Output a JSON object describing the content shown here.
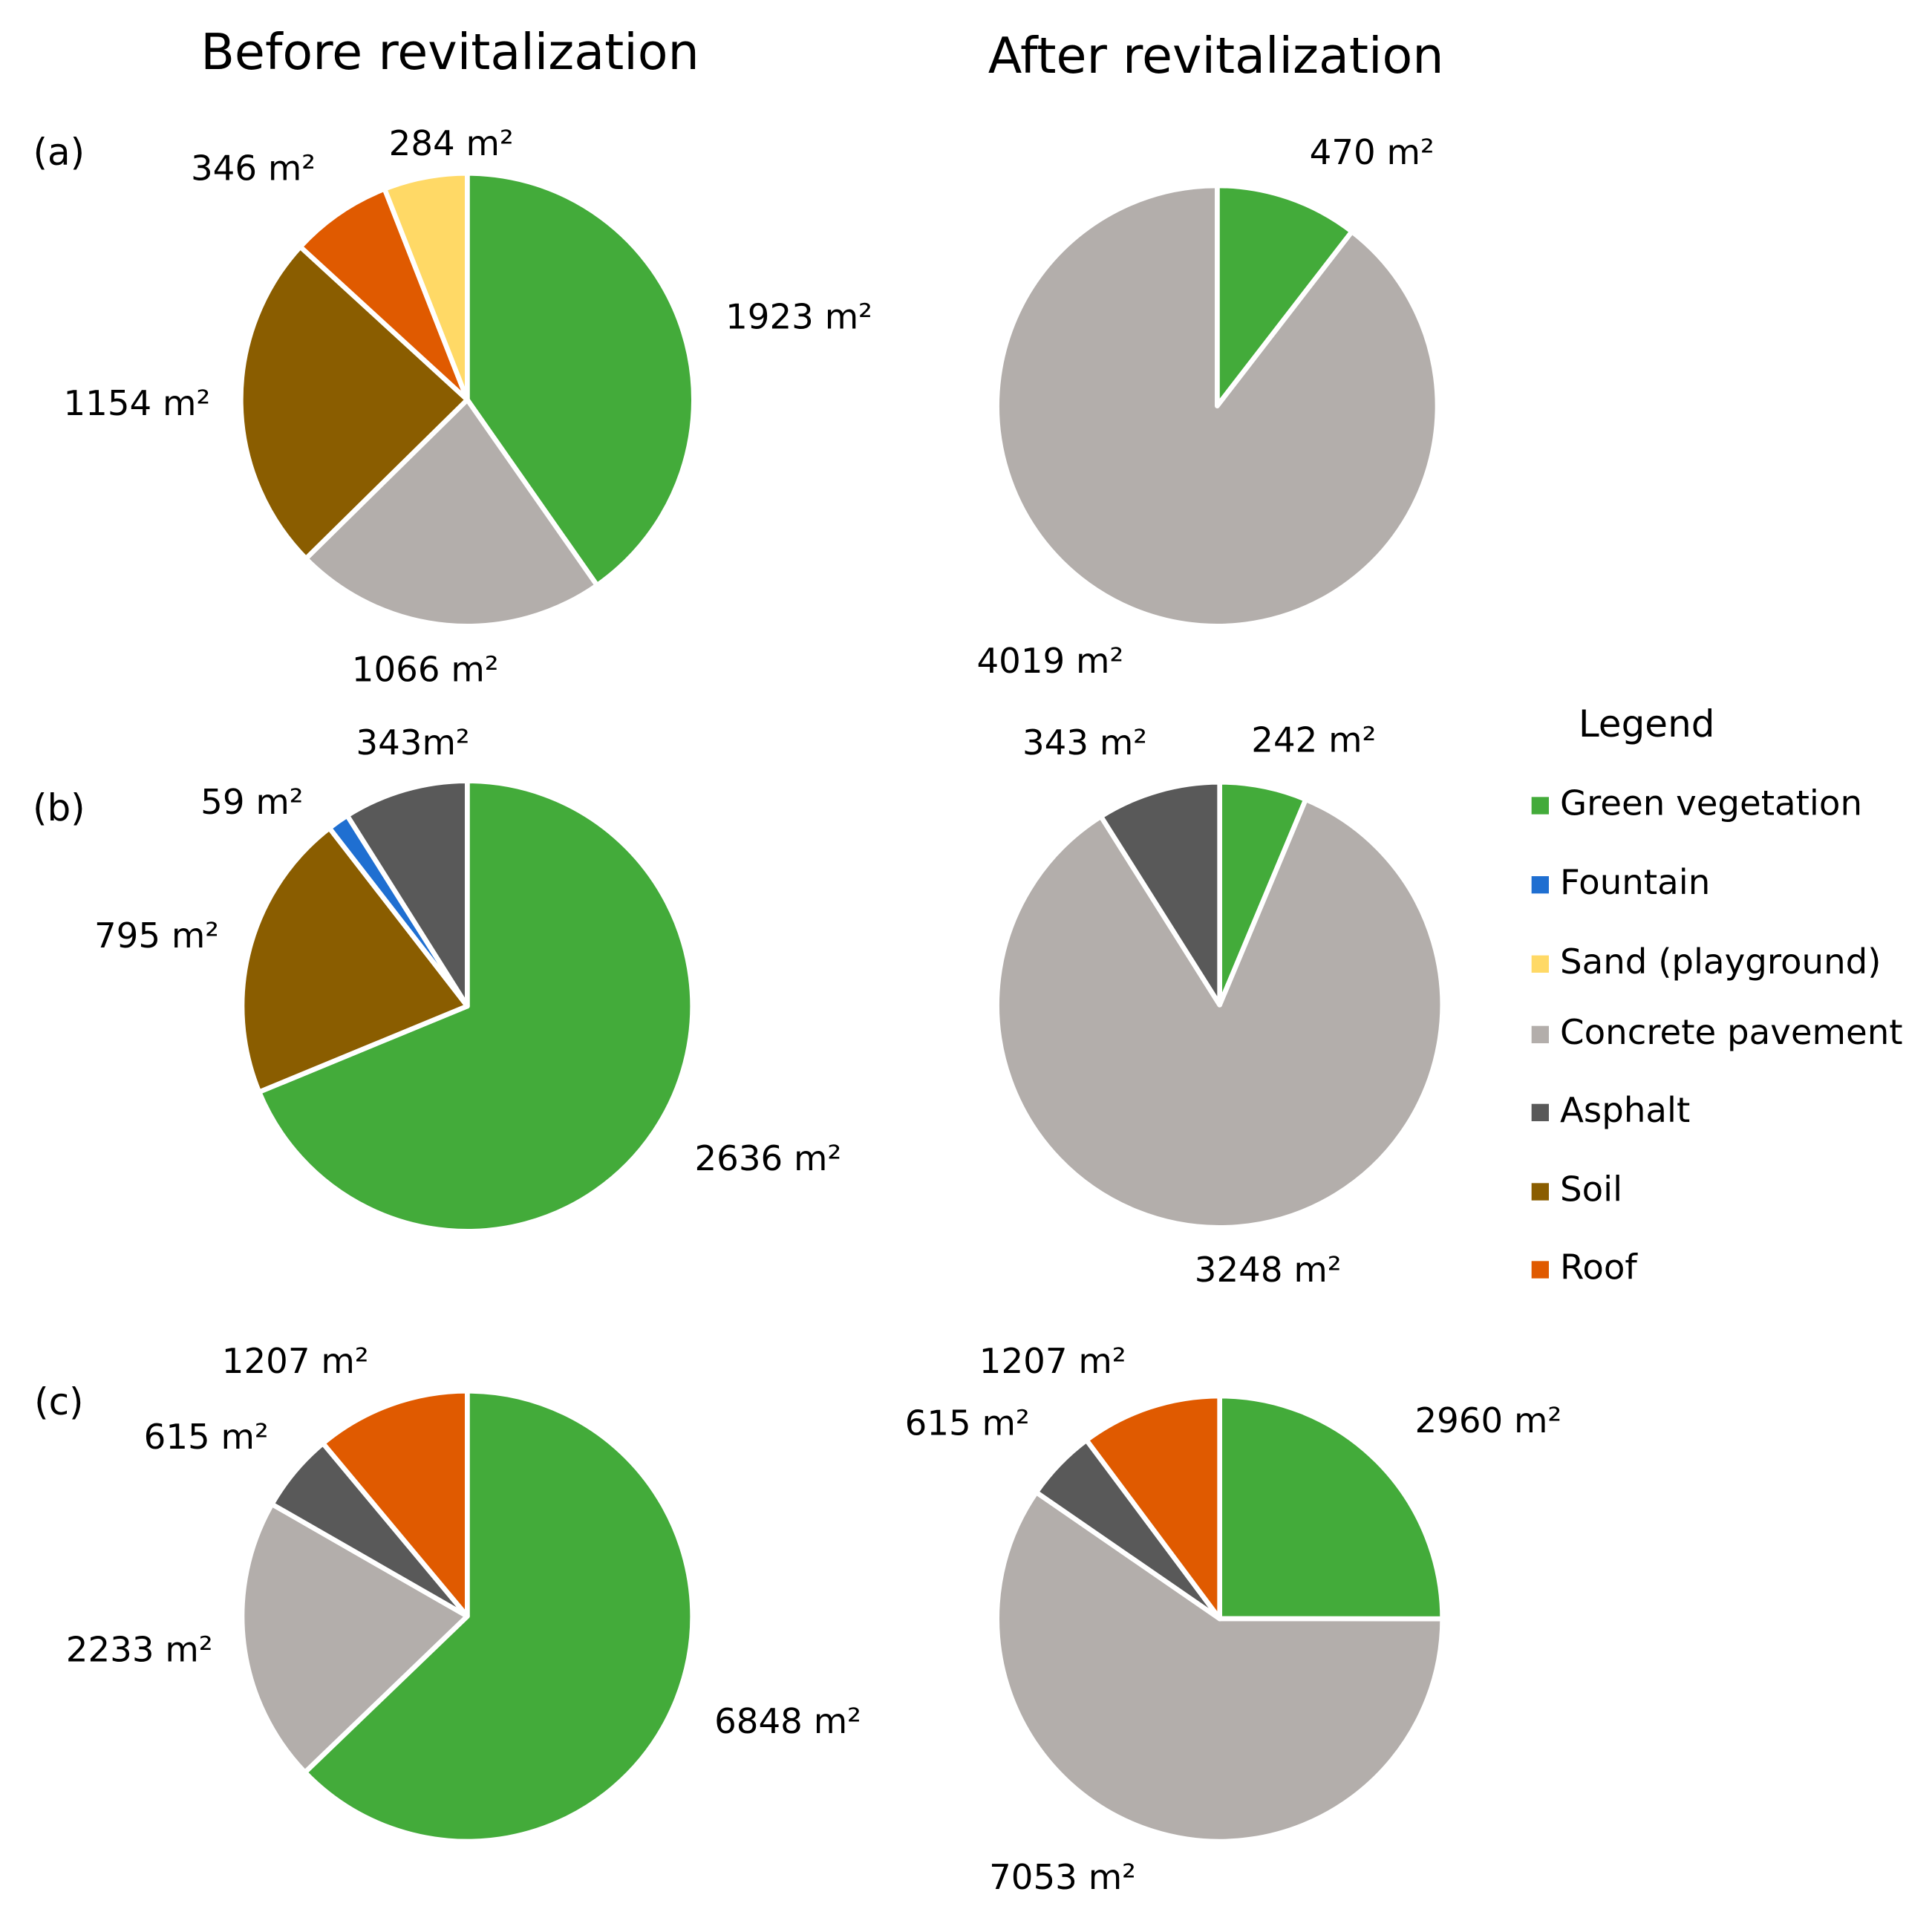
{
  "column_titles": [
    "Before revitalization",
    "After revitalization"
  ],
  "row_labels": [
    "(a)",
    "(b)",
    "(c)"
  ],
  "legend": {
    "title": "Legend",
    "items": [
      {
        "name": "Green vegetation",
        "color": "#43ab3a"
      },
      {
        "name": "Fountain",
        "color": "#1f6fd1"
      },
      {
        "name": "Sand (playground)",
        "color": "#ffd966"
      },
      {
        "name": "Concrete pavement",
        "color": "#b3aeab"
      },
      {
        "name": "Asphalt",
        "color": "#595959"
      },
      {
        "name": "Soil",
        "color": "#8a5d00"
      },
      {
        "name": "Roof",
        "color": "#e05a00"
      }
    ]
  },
  "chart_data": [
    {
      "type": "pie",
      "values": [
        1923,
        1066,
        1154,
        346,
        284
      ],
      "value_labels": [
        "1923 m²",
        "1066 m²",
        "1154 m²",
        "346 m²",
        "284 m²"
      ],
      "colors": [
        "#43ab3a",
        "#b3aeab",
        "#8a5d00",
        "#e05a00",
        "#ffd966"
      ]
    },
    {
      "type": "pie",
      "values": [
        470,
        4019
      ],
      "value_labels": [
        "470 m²",
        "4019 m²"
      ],
      "colors": [
        "#43ab3a",
        "#b3aeab"
      ]
    },
    {
      "type": "pie",
      "values": [
        2636,
        795,
        59,
        343
      ],
      "value_labels": [
        "2636 m²",
        "795 m²",
        "59 m²",
        "343m²"
      ],
      "colors": [
        "#43ab3a",
        "#8a5d00",
        "#1f6fd1",
        "#595959"
      ]
    },
    {
      "type": "pie",
      "values": [
        242,
        3248,
        343
      ],
      "value_labels": [
        "242 m²",
        "3248 m²",
        "343 m²"
      ],
      "colors": [
        "#43ab3a",
        "#b3aeab",
        "#595959"
      ]
    },
    {
      "type": "pie",
      "values": [
        6848,
        2233,
        615,
        1207
      ],
      "value_labels": [
        "6848 m²",
        "2233 m²",
        "615 m²",
        "1207 m²"
      ],
      "colors": [
        "#43ab3a",
        "#b3aeab",
        "#595959",
        "#e05a00"
      ]
    },
    {
      "type": "pie",
      "values": [
        2960,
        7053,
        615,
        1207
      ],
      "value_labels": [
        "2960 m²",
        "7053 m²",
        "615 m²",
        "1207 m²"
      ],
      "colors": [
        "#43ab3a",
        "#b3aeab",
        "#595959",
        "#e05a00"
      ]
    }
  ]
}
